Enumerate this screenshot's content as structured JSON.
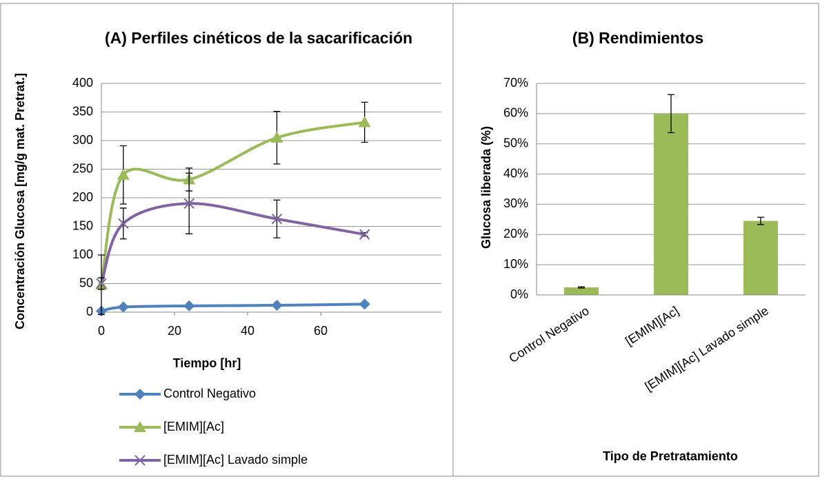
{
  "chart_data": [
    {
      "type": "line",
      "title": "(A) Perfiles cinéticos de la sacarificación",
      "xlabel": "Tiempo [hr]",
      "ylabel": "Concentración Glucosa [mg/g mat. Pretrat.]",
      "x": [
        0,
        6,
        24,
        48,
        72
      ],
      "xlim": [
        0,
        93
      ],
      "xticks": [
        0,
        20,
        40,
        60
      ],
      "ylim": [
        0,
        400
      ],
      "yticks": [
        0,
        50,
        100,
        150,
        200,
        250,
        300,
        350,
        400
      ],
      "grid": true,
      "legend": "bottom",
      "smooth": true,
      "series": [
        {
          "name": "Control Negativo",
          "color": "#4f81bd",
          "marker": "diamond",
          "values": [
            2,
            9,
            11,
            12,
            14
          ],
          "errors": [
            1,
            1,
            1,
            1,
            1
          ]
        },
        {
          "name": "[EMIM][Ac]",
          "color": "#9bbb59",
          "marker": "triangle",
          "values": [
            48,
            240,
            232,
            305,
            332
          ],
          "errors": [
            52,
            51,
            20,
            46,
            35
          ]
        },
        {
          "name": "[EMIM][Ac] Lavado simple",
          "color": "#8064a2",
          "marker": "x",
          "values": [
            50,
            155,
            190,
            163,
            136
          ],
          "errors": [
            10,
            27,
            53,
            33,
            3
          ]
        }
      ]
    },
    {
      "type": "bar",
      "title": "(B) Rendimientos",
      "xlabel": "Tipo de Pretratamiento",
      "ylabel": "Glucosa liberada (%)",
      "categories": [
        "Control Negativo",
        "[EMIM][Ac]",
        "[EMIM][Ac] Lavado simple"
      ],
      "values": [
        2.5,
        60,
        24.5
      ],
      "errors": [
        0.2,
        6.3,
        1.2
      ],
      "color": "#9bbb59",
      "ylim": [
        0,
        70
      ],
      "yticks": [
        {
          "value": 0,
          "label": "0%"
        },
        {
          "value": 10,
          "label": "10%"
        },
        {
          "value": 20,
          "label": "20%"
        },
        {
          "value": 30,
          "label": "30%"
        },
        {
          "value": 40,
          "label": "40%"
        },
        {
          "value": 50,
          "label": "50%"
        },
        {
          "value": 60,
          "label": "60%"
        },
        {
          "value": 70,
          "label": "70%"
        }
      ],
      "grid": true
    }
  ]
}
